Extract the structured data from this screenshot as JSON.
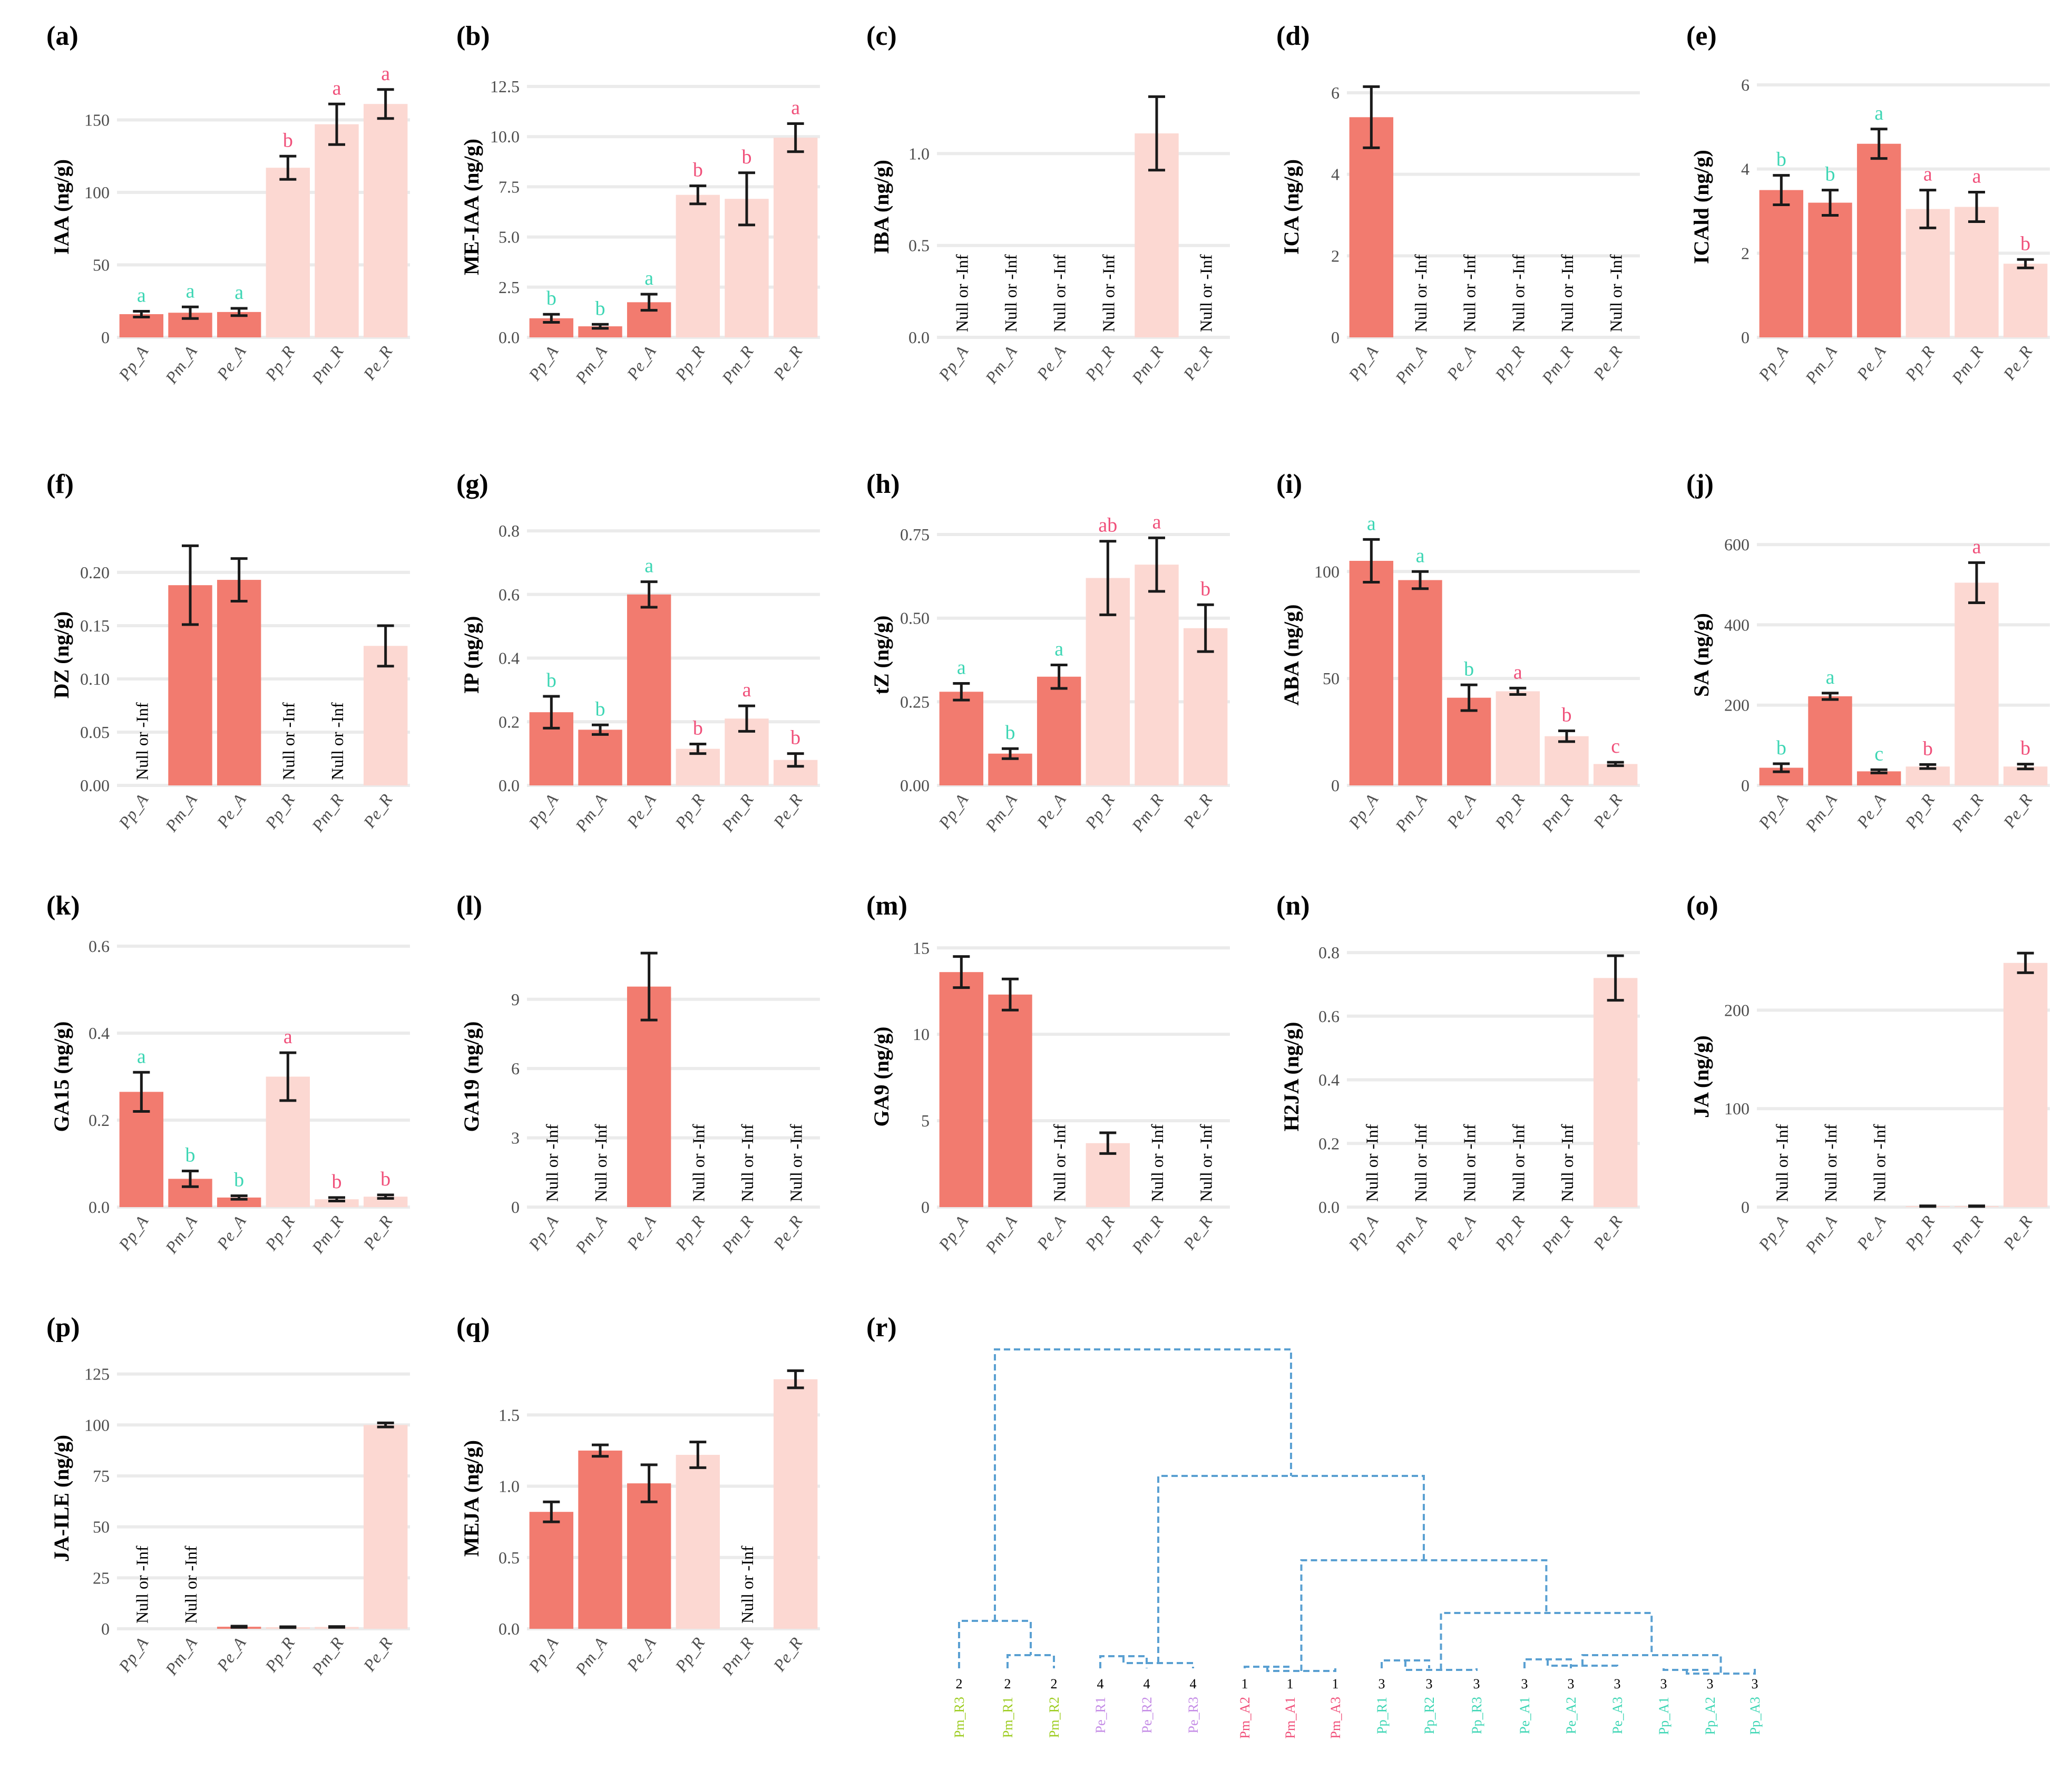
{
  "colors": {
    "bar_A": "#f27b6f",
    "bar_R": "#fcd8d2",
    "label_teal": "#3dd6b4",
    "label_pink": "#f0507a",
    "grid": "#ebebeb",
    "error": "#1a1a1a",
    "tick": "#4d4d4d",
    "dendro_line": "#5aa0d2",
    "leaf_green": "#9ccc1e",
    "leaf_purple": "#c48be6",
    "leaf_pink": "#f0507a",
    "leaf_teal": "#3dd6b4"
  },
  "null_label": "Null or -Inf",
  "chart_data": [
    {
      "panel": "(a)",
      "type": "bar",
      "ylabel": "IAA (ng/g)",
      "ylim": [
        0,
        180
      ],
      "yticks": [
        0,
        50,
        100,
        150
      ],
      "categories": [
        "Pp_A",
        "Pm_A",
        "Pe_A",
        "Pp_R",
        "Pm_R",
        "Pe_R"
      ],
      "values": [
        16,
        17,
        17.5,
        117,
        147,
        161
      ],
      "errors": [
        2,
        4,
        2.5,
        8,
        14,
        10
      ],
      "letters": [
        "a",
        "a",
        "a",
        "b",
        "a",
        "a"
      ],
      "letter_colors": [
        "teal",
        "teal",
        "teal",
        "pink",
        "pink",
        "pink"
      ]
    },
    {
      "panel": "(b)",
      "type": "bar",
      "ylabel": "ME-IAA (ng/g)",
      "ylim": [
        0,
        13
      ],
      "yticks": [
        0.0,
        2.5,
        5.0,
        7.5,
        10.0,
        12.5
      ],
      "categories": [
        "Pp_A",
        "Pm_A",
        "Pe_A",
        "Pp_R",
        "Pm_R",
        "Pe_R"
      ],
      "values": [
        0.95,
        0.55,
        1.75,
        7.1,
        6.9,
        9.95
      ],
      "errors": [
        0.2,
        0.1,
        0.4,
        0.45,
        1.3,
        0.7
      ],
      "letters": [
        "b",
        "b",
        "a",
        "b",
        "b",
        "a"
      ],
      "letter_colors": [
        "teal",
        "teal",
        "teal",
        "pink",
        "pink",
        "pink"
      ]
    },
    {
      "panel": "(c)",
      "type": "bar",
      "ylabel": "IBA (ng/g)",
      "ylim": [
        0,
        1.42
      ],
      "yticks": [
        0.0,
        0.5,
        1.0
      ],
      "categories": [
        "Pp_A",
        "Pm_A",
        "Pe_A",
        "Pp_R",
        "Pm_R",
        "Pe_R"
      ],
      "values": [
        null,
        null,
        null,
        null,
        1.11,
        null
      ],
      "errors": [
        0,
        0,
        0,
        0,
        0.2,
        0
      ],
      "letters": [
        "",
        "",
        "",
        "",
        "",
        ""
      ],
      "letter_colors": [
        "",
        "",
        "",
        "",
        "",
        ""
      ]
    },
    {
      "panel": "(d)",
      "type": "bar",
      "ylabel": "ICA (ng/g)",
      "ylim": [
        0,
        6.4
      ],
      "yticks": [
        0,
        2,
        4,
        6
      ],
      "categories": [
        "Pp_A",
        "Pm_A",
        "Pe_A",
        "Pp_R",
        "Pm_R",
        "Pe_R"
      ],
      "values": [
        5.4,
        null,
        null,
        null,
        null,
        null
      ],
      "errors": [
        0.75,
        0,
        0,
        0,
        0,
        0
      ],
      "letters": [
        "",
        "",
        "",
        "",
        "",
        ""
      ],
      "letter_colors": [
        "",
        "",
        "",
        "",
        "",
        ""
      ]
    },
    {
      "panel": "(e)",
      "type": "bar",
      "ylabel": "ICAld (ng/g)",
      "ylim": [
        0,
        6.2
      ],
      "yticks": [
        0,
        2,
        4,
        6
      ],
      "categories": [
        "Pp_A",
        "Pm_A",
        "Pe_A",
        "Pp_R",
        "Pm_R",
        "Pe_R"
      ],
      "values": [
        3.5,
        3.2,
        4.6,
        3.05,
        3.1,
        1.75
      ],
      "errors": [
        0.35,
        0.3,
        0.35,
        0.45,
        0.35,
        0.1
      ],
      "letters": [
        "b",
        "b",
        "a",
        "a",
        "a",
        "b"
      ],
      "letter_colors": [
        "teal",
        "teal",
        "teal",
        "pink",
        "pink",
        "pink"
      ]
    },
    {
      "panel": "(f)",
      "type": "bar",
      "ylabel": "DZ (ng/g)",
      "ylim": [
        0,
        0.245
      ],
      "yticks": [
        0.0,
        0.05,
        0.1,
        0.15,
        0.2
      ],
      "categories": [
        "Pp_A",
        "Pm_A",
        "Pe_A",
        "Pp_R",
        "Pm_R",
        "Pe_R"
      ],
      "values": [
        null,
        0.188,
        0.193,
        null,
        null,
        0.131
      ],
      "errors": [
        0,
        0.037,
        0.02,
        0,
        0,
        0.019
      ],
      "letters": [
        "",
        "",
        "",
        "",
        "",
        ""
      ],
      "letter_colors": [
        "",
        "",
        "",
        "",
        "",
        ""
      ]
    },
    {
      "panel": "(g)",
      "type": "bar",
      "ylabel": "IP (ng/g)",
      "ylim": [
        0,
        0.82
      ],
      "yticks": [
        0.0,
        0.2,
        0.4,
        0.6,
        0.8
      ],
      "categories": [
        "Pp_A",
        "Pm_A",
        "Pe_A",
        "Pp_R",
        "Pm_R",
        "Pe_R"
      ],
      "values": [
        0.23,
        0.175,
        0.6,
        0.115,
        0.21,
        0.08
      ],
      "errors": [
        0.05,
        0.015,
        0.04,
        0.015,
        0.04,
        0.02
      ],
      "letters": [
        "b",
        "b",
        "a",
        "b",
        "a",
        "b"
      ],
      "letter_colors": [
        "teal",
        "teal",
        "teal",
        "pink",
        "pink",
        "pink"
      ]
    },
    {
      "panel": "(h)",
      "type": "bar",
      "ylabel": "tZ (ng/g)",
      "ylim": [
        0,
        0.78
      ],
      "yticks": [
        0.0,
        0.25,
        0.5,
        0.75
      ],
      "categories": [
        "Pp_A",
        "Pm_A",
        "Pe_A",
        "Pp_R",
        "Pm_R",
        "Pe_R"
      ],
      "values": [
        0.28,
        0.095,
        0.325,
        0.62,
        0.66,
        0.47
      ],
      "errors": [
        0.025,
        0.015,
        0.035,
        0.11,
        0.08,
        0.07
      ],
      "letters": [
        "a",
        "b",
        "a",
        "ab",
        "a",
        "b"
      ],
      "letter_colors": [
        "teal",
        "teal",
        "teal",
        "pink",
        "pink",
        "pink"
      ]
    },
    {
      "panel": "(i)",
      "type": "bar",
      "ylabel": "ABA (ng/g)",
      "ylim": [
        0,
        122
      ],
      "yticks": [
        0,
        50,
        100
      ],
      "categories": [
        "Pp_A",
        "Pm_A",
        "Pe_A",
        "Pp_R",
        "Pm_R",
        "Pe_R"
      ],
      "values": [
        105,
        96,
        41,
        44,
        23,
        10
      ],
      "errors": [
        10,
        4,
        6,
        1.5,
        2.5,
        0.8
      ],
      "letters": [
        "a",
        "a",
        "b",
        "a",
        "b",
        "c"
      ],
      "letter_colors": [
        "teal",
        "teal",
        "teal",
        "pink",
        "pink",
        "pink"
      ]
    },
    {
      "panel": "(j)",
      "type": "bar",
      "ylabel": "SA (ng/g)",
      "ylim": [
        0,
        650
      ],
      "yticks": [
        0,
        200,
        400,
        600
      ],
      "categories": [
        "Pp_A",
        "Pm_A",
        "Pe_A",
        "Pp_R",
        "Pm_R",
        "Pe_R"
      ],
      "values": [
        44,
        222,
        35,
        47,
        505,
        47
      ],
      "errors": [
        10,
        8,
        4,
        5,
        50,
        6
      ],
      "letters": [
        "b",
        "a",
        "c",
        "b",
        "a",
        "b"
      ],
      "letter_colors": [
        "teal",
        "teal",
        "teal",
        "pink",
        "pink",
        "pink"
      ]
    },
    {
      "panel": "(k)",
      "type": "bar",
      "ylabel": "GA15 (ng/g)",
      "ylim": [
        0,
        0.6
      ],
      "yticks": [
        0.0,
        0.2,
        0.4,
        0.6
      ],
      "categories": [
        "Pp_A",
        "Pm_A",
        "Pe_A",
        "Pp_R",
        "Pm_R",
        "Pe_R"
      ],
      "values": [
        0.265,
        0.065,
        0.022,
        0.3,
        0.018,
        0.024
      ],
      "errors": [
        0.045,
        0.018,
        0.004,
        0.055,
        0.004,
        0.004
      ],
      "letters": [
        "a",
        "b",
        "b",
        "a",
        "b",
        "b"
      ],
      "letter_colors": [
        "teal",
        "teal",
        "teal",
        "pink",
        "pink",
        "pink"
      ]
    },
    {
      "panel": "(l)",
      "type": "bar",
      "ylabel": "GA19 (ng/g)",
      "ylim": [
        0,
        11.3
      ],
      "yticks": [
        0,
        3,
        6,
        9
      ],
      "categories": [
        "Pp_A",
        "Pm_A",
        "Pe_A",
        "Pp_R",
        "Pm_R",
        "Pe_R"
      ],
      "values": [
        null,
        null,
        9.55,
        null,
        null,
        null
      ],
      "errors": [
        0,
        0,
        1.45,
        0,
        0,
        0
      ],
      "letters": [
        "",
        "",
        "",
        "",
        "",
        ""
      ],
      "letter_colors": [
        "",
        "",
        "",
        "",
        "",
        ""
      ]
    },
    {
      "panel": "(m)",
      "type": "bar",
      "ylabel": "GA9 (ng/g)",
      "ylim": [
        0,
        15.1
      ],
      "yticks": [
        0,
        5,
        10,
        15
      ],
      "categories": [
        "Pp_A",
        "Pm_A",
        "Pe_A",
        "Pp_R",
        "Pm_R",
        "Pe_R"
      ],
      "values": [
        13.6,
        12.3,
        null,
        3.7,
        null,
        null
      ],
      "errors": [
        0.9,
        0.9,
        0,
        0.6,
        0,
        0
      ],
      "letters": [
        "",
        "",
        "",
        "",
        "",
        ""
      ],
      "letter_colors": [
        "",
        "",
        "",
        "",
        "",
        ""
      ]
    },
    {
      "panel": "(n)",
      "type": "bar",
      "ylabel": "H2JA (ng/g)",
      "ylim": [
        0,
        0.82
      ],
      "yticks": [
        0.0,
        0.2,
        0.4,
        0.6,
        0.8
      ],
      "categories": [
        "Pp_A",
        "Pm_A",
        "Pe_A",
        "Pp_R",
        "Pm_R",
        "Pe_R"
      ],
      "values": [
        null,
        null,
        null,
        null,
        null,
        0.72
      ],
      "errors": [
        0,
        0,
        0,
        0,
        0,
        0.07
      ],
      "letters": [
        "",
        "",
        "",
        "",
        "",
        ""
      ],
      "letter_colors": [
        "",
        "",
        "",
        "",
        "",
        ""
      ]
    },
    {
      "panel": "(o)",
      "type": "bar",
      "ylabel": "JA (ng/g)",
      "ylim": [
        0,
        265
      ],
      "yticks": [
        0,
        100,
        200
      ],
      "categories": [
        "Pp_A",
        "Pm_A",
        "Pe_A",
        "Pp_R",
        "Pm_R",
        "Pe_R"
      ],
      "values": [
        null,
        null,
        null,
        1,
        1,
        248
      ],
      "errors": [
        0,
        0,
        0,
        0.3,
        0.3,
        10
      ],
      "letters": [
        "",
        "",
        "",
        "",
        "",
        ""
      ],
      "letter_colors": [
        "",
        "",
        "",
        "",
        "",
        ""
      ]
    },
    {
      "panel": "(p)",
      "type": "bar",
      "ylabel": "JA-ILE (ng/g)",
      "ylim": [
        0,
        128
      ],
      "yticks": [
        0,
        25,
        50,
        75,
        100,
        125
      ],
      "categories": [
        "Pp_A",
        "Pm_A",
        "Pe_A",
        "Pp_R",
        "Pm_R",
        "Pe_R"
      ],
      "values": [
        null,
        null,
        1,
        0.8,
        0.9,
        100
      ],
      "errors": [
        0,
        0,
        0.3,
        0.2,
        0.2,
        1
      ],
      "letters": [
        "",
        "",
        "",
        "",
        "",
        ""
      ],
      "letter_colors": [
        "",
        "",
        "",
        "",
        "",
        ""
      ]
    },
    {
      "panel": "(q)",
      "type": "bar",
      "ylabel": "MEJA (ng/g)",
      "ylim": [
        0,
        1.83
      ],
      "yticks": [
        0.0,
        0.5,
        1.0,
        1.5
      ],
      "categories": [
        "Pp_A",
        "Pm_A",
        "Pe_A",
        "Pp_R",
        "Pm_R",
        "Pe_R"
      ],
      "values": [
        0.82,
        1.25,
        1.02,
        1.22,
        null,
        1.75
      ],
      "errors": [
        0.07,
        0.04,
        0.13,
        0.09,
        0,
        0.06
      ],
      "letters": [
        "",
        "",
        "",
        "",
        "",
        ""
      ],
      "letter_colors": [
        "",
        "",
        "",
        "",
        "",
        ""
      ]
    },
    {
      "panel": "(r)",
      "type": "dendrogram",
      "leaves": [
        {
          "label": "Pm_R3",
          "cluster": "2",
          "color": "green"
        },
        {
          "label": "Pm_R1",
          "cluster": "2",
          "color": "green"
        },
        {
          "label": "Pm_R2",
          "cluster": "2",
          "color": "green"
        },
        {
          "label": "Pe_R1",
          "cluster": "4",
          "color": "purple"
        },
        {
          "label": "Pe_R2",
          "cluster": "4",
          "color": "purple"
        },
        {
          "label": "Pe_R3",
          "cluster": "4",
          "color": "purple"
        },
        {
          "label": "Pm_A2",
          "cluster": "1",
          "color": "pink"
        },
        {
          "label": "Pm_A1",
          "cluster": "1",
          "color": "pink"
        },
        {
          "label": "Pm_A3",
          "cluster": "1",
          "color": "pink"
        },
        {
          "label": "Pp_R1",
          "cluster": "3",
          "color": "teal"
        },
        {
          "label": "Pp_R2",
          "cluster": "3",
          "color": "teal"
        },
        {
          "label": "Pp_R3",
          "cluster": "3",
          "color": "teal"
        },
        {
          "label": "Pe_A1",
          "cluster": "3",
          "color": "teal"
        },
        {
          "label": "Pe_A2",
          "cluster": "3",
          "color": "teal"
        },
        {
          "label": "Pe_A3",
          "cluster": "3",
          "color": "teal"
        },
        {
          "label": "Pp_A1",
          "cluster": "3",
          "color": "teal"
        },
        {
          "label": "Pp_A2",
          "cluster": "3",
          "color": "teal"
        },
        {
          "label": "Pp_A3",
          "cluster": "3",
          "color": "teal"
        }
      ]
    }
  ]
}
